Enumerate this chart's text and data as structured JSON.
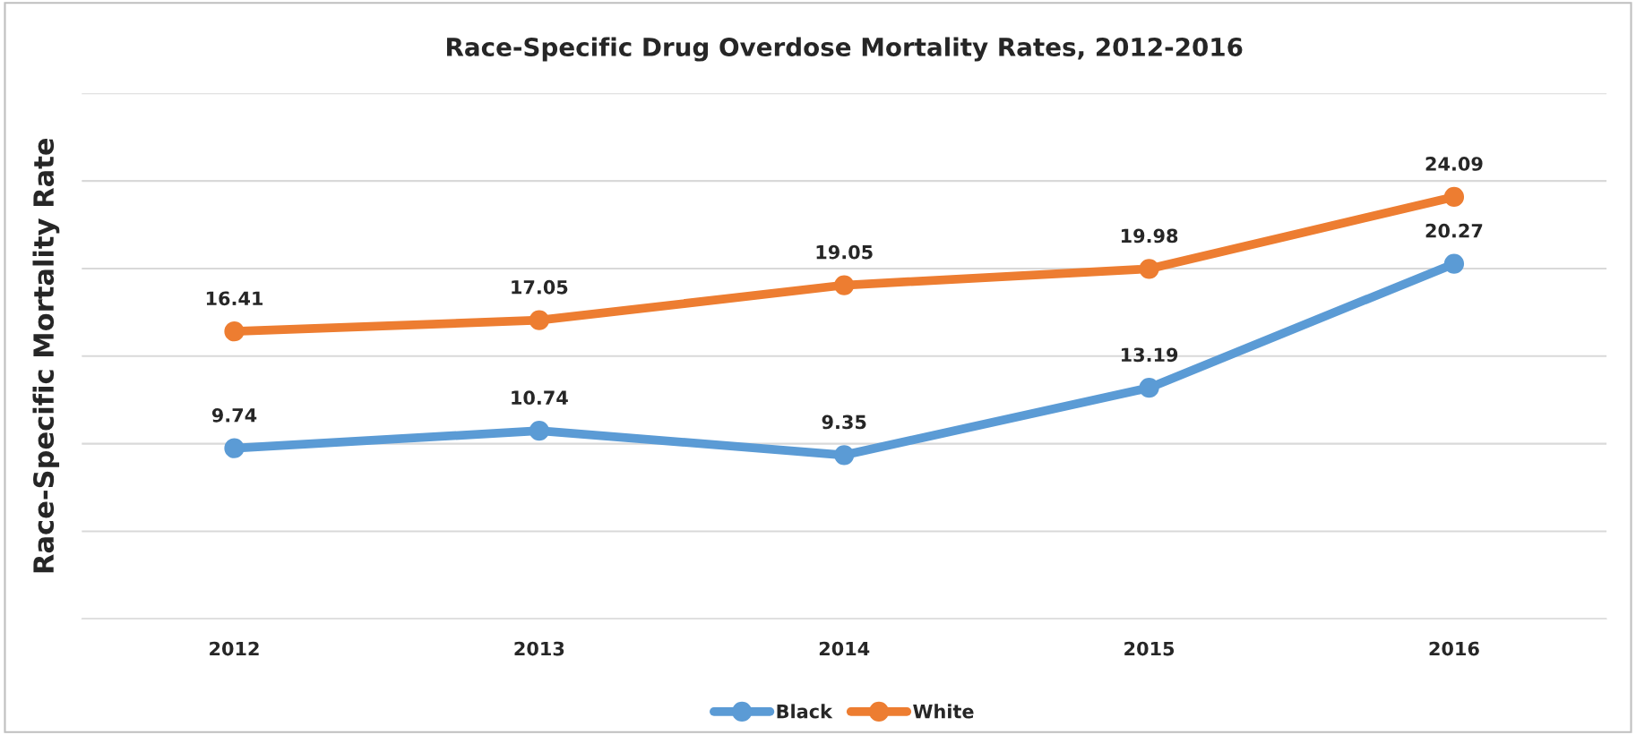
{
  "chart_data": {
    "type": "line",
    "title": "Race-Specific Drug Overdose Mortality Rates, 2012-2016",
    "ylabel": "Race-Specific Mortality Rate",
    "categories": [
      "2012",
      "2013",
      "2014",
      "2015",
      "2016"
    ],
    "series": [
      {
        "name": "Black",
        "color": "#5b9bd5",
        "values": [
          9.74,
          10.74,
          9.35,
          13.19,
          20.27
        ]
      },
      {
        "name": "White",
        "color": "#ed7d31",
        "values": [
          16.41,
          17.05,
          19.05,
          19.98,
          24.09
        ]
      }
    ],
    "ylim": [
      0,
      30
    ],
    "yticks": [
      {
        "value": 0,
        "label": null
      },
      {
        "value": 5,
        "label": null
      },
      {
        "value": 10,
        "label": null
      },
      {
        "value": 15,
        "label": null
      },
      {
        "value": 20,
        "label": null
      },
      {
        "value": 25,
        "label": null
      },
      {
        "value": 30,
        "label": null
      }
    ],
    "tick_labels": "x",
    "grid": "y",
    "legend": "bottom",
    "marker": "circle",
    "line_style": "solid",
    "data_labels": true
  }
}
